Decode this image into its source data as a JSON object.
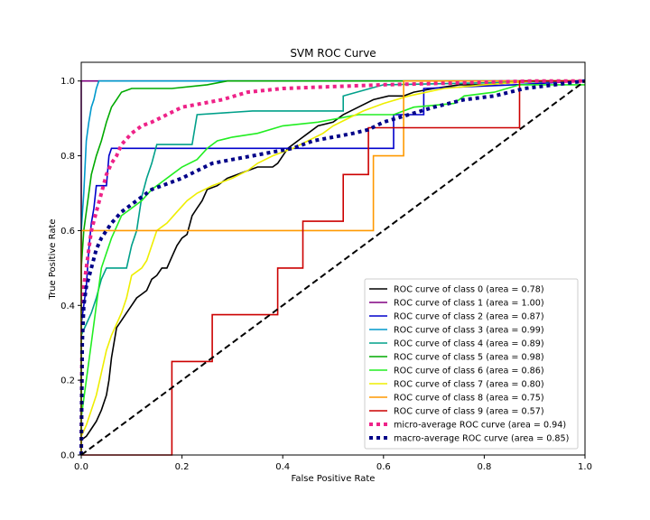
{
  "chart_data": {
    "type": "line",
    "title": "SVM ROC Curve",
    "xlabel": "False Positive Rate",
    "ylabel": "True Positive Rate",
    "xlim": [
      0,
      1
    ],
    "ylim": [
      0,
      1.05
    ],
    "xticks": [
      "0.0",
      "0.2",
      "0.4",
      "0.6",
      "0.8",
      "1.0"
    ],
    "yticks": [
      "0.0",
      "0.2",
      "0.4",
      "0.6",
      "0.8",
      "1.0"
    ],
    "grid": false,
    "legend_position": "lower-right",
    "series": [
      {
        "name": "ROC curve of class 0 (area = 0.78)",
        "color": "#000000",
        "style": "solid",
        "points": [
          [
            0,
            0
          ],
          [
            0,
            0.04
          ],
          [
            0.01,
            0.05
          ],
          [
            0.02,
            0.07
          ],
          [
            0.03,
            0.09
          ],
          [
            0.04,
            0.12
          ],
          [
            0.05,
            0.16
          ],
          [
            0.055,
            0.2
          ],
          [
            0.06,
            0.26
          ],
          [
            0.065,
            0.3
          ],
          [
            0.07,
            0.34
          ],
          [
            0.08,
            0.36
          ],
          [
            0.09,
            0.38
          ],
          [
            0.1,
            0.4
          ],
          [
            0.11,
            0.42
          ],
          [
            0.12,
            0.43
          ],
          [
            0.13,
            0.44
          ],
          [
            0.14,
            0.47
          ],
          [
            0.15,
            0.48
          ],
          [
            0.16,
            0.5
          ],
          [
            0.17,
            0.5
          ],
          [
            0.18,
            0.53
          ],
          [
            0.19,
            0.56
          ],
          [
            0.2,
            0.58
          ],
          [
            0.21,
            0.59
          ],
          [
            0.22,
            0.64
          ],
          [
            0.23,
            0.66
          ],
          [
            0.24,
            0.68
          ],
          [
            0.25,
            0.71
          ],
          [
            0.27,
            0.72
          ],
          [
            0.29,
            0.74
          ],
          [
            0.31,
            0.75
          ],
          [
            0.33,
            0.76
          ],
          [
            0.35,
            0.77
          ],
          [
            0.38,
            0.77
          ],
          [
            0.39,
            0.78
          ],
          [
            0.41,
            0.82
          ],
          [
            0.43,
            0.84
          ],
          [
            0.45,
            0.86
          ],
          [
            0.47,
            0.88
          ],
          [
            0.5,
            0.89
          ],
          [
            0.52,
            0.91
          ],
          [
            0.55,
            0.93
          ],
          [
            0.58,
            0.95
          ],
          [
            0.61,
            0.96
          ],
          [
            0.64,
            0.96
          ],
          [
            0.66,
            0.97
          ],
          [
            0.7,
            0.98
          ],
          [
            0.75,
            0.99
          ],
          [
            0.8,
            0.99
          ],
          [
            0.9,
            1.0
          ],
          [
            1.0,
            1.0
          ]
        ]
      },
      {
        "name": "ROC curve of class 1 (area = 1.00)",
        "color": "#800080",
        "style": "solid",
        "points": [
          [
            0,
            0
          ],
          [
            0,
            1.0
          ],
          [
            1.0,
            1.0
          ]
        ]
      },
      {
        "name": "ROC curve of class 2 (area = 0.87)",
        "color": "#0000cc",
        "style": "solid",
        "points": [
          [
            0,
            0
          ],
          [
            0,
            0.35
          ],
          [
            0.01,
            0.45
          ],
          [
            0.015,
            0.55
          ],
          [
            0.02,
            0.62
          ],
          [
            0.025,
            0.66
          ],
          [
            0.03,
            0.72
          ],
          [
            0.05,
            0.72
          ],
          [
            0.055,
            0.8
          ],
          [
            0.06,
            0.82
          ],
          [
            0.3,
            0.82
          ],
          [
            0.62,
            0.82
          ],
          [
            0.62,
            0.91
          ],
          [
            0.68,
            0.91
          ],
          [
            0.68,
            0.98
          ],
          [
            0.86,
            0.99
          ],
          [
            1.0,
            1.0
          ]
        ]
      },
      {
        "name": "ROC curve of class 3 (area = 0.99)",
        "color": "#0099cc",
        "style": "solid",
        "points": [
          [
            0,
            0
          ],
          [
            0,
            0.6
          ],
          [
            0.005,
            0.7
          ],
          [
            0.01,
            0.84
          ],
          [
            0.015,
            0.89
          ],
          [
            0.02,
            0.93
          ],
          [
            0.025,
            0.95
          ],
          [
            0.03,
            0.98
          ],
          [
            0.035,
            1.0
          ],
          [
            1.0,
            1.0
          ]
        ]
      },
      {
        "name": "ROC curve of class 4 (area = 0.89)",
        "color": "#00a08a",
        "style": "solid",
        "points": [
          [
            0,
            0
          ],
          [
            0,
            0.32
          ],
          [
            0.01,
            0.35
          ],
          [
            0.02,
            0.38
          ],
          [
            0.03,
            0.42
          ],
          [
            0.04,
            0.47
          ],
          [
            0.05,
            0.5
          ],
          [
            0.09,
            0.5
          ],
          [
            0.1,
            0.56
          ],
          [
            0.11,
            0.6
          ],
          [
            0.12,
            0.69
          ],
          [
            0.13,
            0.74
          ],
          [
            0.14,
            0.78
          ],
          [
            0.15,
            0.83
          ],
          [
            0.22,
            0.83
          ],
          [
            0.23,
            0.91
          ],
          [
            0.34,
            0.92
          ],
          [
            0.52,
            0.92
          ],
          [
            0.52,
            0.96
          ],
          [
            0.6,
            0.99
          ],
          [
            1.0,
            1.0
          ]
        ]
      },
      {
        "name": "ROC curve of class 5 (area = 0.98)",
        "color": "#00aa00",
        "style": "solid",
        "points": [
          [
            0,
            0
          ],
          [
            0,
            0.5
          ],
          [
            0.005,
            0.6
          ],
          [
            0.01,
            0.65
          ],
          [
            0.015,
            0.7
          ],
          [
            0.02,
            0.75
          ],
          [
            0.03,
            0.8
          ],
          [
            0.04,
            0.84
          ],
          [
            0.05,
            0.89
          ],
          [
            0.06,
            0.93
          ],
          [
            0.07,
            0.95
          ],
          [
            0.08,
            0.97
          ],
          [
            0.1,
            0.98
          ],
          [
            0.18,
            0.98
          ],
          [
            0.25,
            0.99
          ],
          [
            0.29,
            1.0
          ],
          [
            1.0,
            1.0
          ]
        ]
      },
      {
        "name": "ROC curve of class 6 (area = 0.86)",
        "color": "#22ee22",
        "style": "solid",
        "points": [
          [
            0,
            0
          ],
          [
            0,
            0.1
          ],
          [
            0.01,
            0.2
          ],
          [
            0.02,
            0.3
          ],
          [
            0.03,
            0.4
          ],
          [
            0.04,
            0.5
          ],
          [
            0.05,
            0.54
          ],
          [
            0.06,
            0.58
          ],
          [
            0.07,
            0.61
          ],
          [
            0.08,
            0.64
          ],
          [
            0.1,
            0.66
          ],
          [
            0.12,
            0.68
          ],
          [
            0.14,
            0.71
          ],
          [
            0.16,
            0.73
          ],
          [
            0.18,
            0.75
          ],
          [
            0.2,
            0.77
          ],
          [
            0.23,
            0.79
          ],
          [
            0.25,
            0.82
          ],
          [
            0.27,
            0.84
          ],
          [
            0.3,
            0.85
          ],
          [
            0.35,
            0.86
          ],
          [
            0.4,
            0.88
          ],
          [
            0.47,
            0.89
          ],
          [
            0.55,
            0.91
          ],
          [
            0.62,
            0.91
          ],
          [
            0.66,
            0.93
          ],
          [
            0.74,
            0.94
          ],
          [
            0.76,
            0.96
          ],
          [
            0.82,
            0.97
          ],
          [
            0.87,
            0.99
          ],
          [
            1.0,
            0.99
          ]
        ]
      },
      {
        "name": "ROC curve of class 7 (area = 0.80)",
        "color": "#eeee00",
        "style": "solid",
        "points": [
          [
            0,
            0
          ],
          [
            0,
            0.05
          ],
          [
            0.01,
            0.08
          ],
          [
            0.02,
            0.12
          ],
          [
            0.03,
            0.16
          ],
          [
            0.04,
            0.22
          ],
          [
            0.05,
            0.28
          ],
          [
            0.06,
            0.32
          ],
          [
            0.07,
            0.35
          ],
          [
            0.08,
            0.38
          ],
          [
            0.09,
            0.42
          ],
          [
            0.1,
            0.48
          ],
          [
            0.12,
            0.5
          ],
          [
            0.13,
            0.52
          ],
          [
            0.14,
            0.56
          ],
          [
            0.15,
            0.6
          ],
          [
            0.17,
            0.62
          ],
          [
            0.19,
            0.65
          ],
          [
            0.21,
            0.68
          ],
          [
            0.23,
            0.7
          ],
          [
            0.26,
            0.72
          ],
          [
            0.28,
            0.73
          ],
          [
            0.3,
            0.74
          ],
          [
            0.33,
            0.76
          ],
          [
            0.35,
            0.78
          ],
          [
            0.38,
            0.8
          ],
          [
            0.42,
            0.82
          ],
          [
            0.45,
            0.84
          ],
          [
            0.48,
            0.86
          ],
          [
            0.5,
            0.88
          ],
          [
            0.53,
            0.9
          ],
          [
            0.56,
            0.92
          ],
          [
            0.6,
            0.94
          ],
          [
            0.65,
            0.96
          ],
          [
            0.72,
            0.98
          ],
          [
            0.8,
            0.99
          ],
          [
            0.9,
            1.0
          ],
          [
            1.0,
            1.0
          ]
        ]
      },
      {
        "name": "ROC curve of class 8 (area = 0.75)",
        "color": "#ff9900",
        "style": "solid",
        "points": [
          [
            0,
            0
          ],
          [
            0,
            0.6
          ],
          [
            0.58,
            0.6
          ],
          [
            0.58,
            0.8
          ],
          [
            0.64,
            0.8
          ],
          [
            0.64,
            1.0
          ],
          [
            1.0,
            1.0
          ]
        ]
      },
      {
        "name": "ROC curve of class 9 (area = 0.57)",
        "color": "#cc0000",
        "style": "solid",
        "points": [
          [
            0,
            0
          ],
          [
            0.18,
            0
          ],
          [
            0.18,
            0.25
          ],
          [
            0.26,
            0.25
          ],
          [
            0.26,
            0.375
          ],
          [
            0.39,
            0.375
          ],
          [
            0.39,
            0.5
          ],
          [
            0.44,
            0.5
          ],
          [
            0.44,
            0.625
          ],
          [
            0.52,
            0.625
          ],
          [
            0.52,
            0.75
          ],
          [
            0.57,
            0.75
          ],
          [
            0.57,
            0.875
          ],
          [
            0.87,
            0.875
          ],
          [
            0.87,
            1.0
          ],
          [
            1.0,
            1.0
          ]
        ]
      },
      {
        "name": "micro-average ROC curve (area = 0.94)",
        "color": "#ee2288",
        "style": "dotted",
        "points": [
          [
            0,
            0
          ],
          [
            0.002,
            0.35
          ],
          [
            0.005,
            0.45
          ],
          [
            0.01,
            0.5
          ],
          [
            0.015,
            0.55
          ],
          [
            0.02,
            0.6
          ],
          [
            0.03,
            0.65
          ],
          [
            0.04,
            0.7
          ],
          [
            0.05,
            0.75
          ],
          [
            0.06,
            0.78
          ],
          [
            0.07,
            0.8
          ],
          [
            0.08,
            0.83
          ],
          [
            0.1,
            0.86
          ],
          [
            0.12,
            0.88
          ],
          [
            0.14,
            0.89
          ],
          [
            0.17,
            0.91
          ],
          [
            0.2,
            0.93
          ],
          [
            0.24,
            0.94
          ],
          [
            0.28,
            0.95
          ],
          [
            0.33,
            0.97
          ],
          [
            0.4,
            0.98
          ],
          [
            0.5,
            0.985
          ],
          [
            0.6,
            0.99
          ],
          [
            0.75,
            0.995
          ],
          [
            0.9,
            1.0
          ],
          [
            1.0,
            1.0
          ]
        ]
      },
      {
        "name": "macro-average ROC curve (area = 0.85)",
        "color": "#000088",
        "style": "dotted",
        "points": [
          [
            0,
            0
          ],
          [
            0.002,
            0.3
          ],
          [
            0.005,
            0.4
          ],
          [
            0.01,
            0.45
          ],
          [
            0.02,
            0.5
          ],
          [
            0.03,
            0.55
          ],
          [
            0.04,
            0.58
          ],
          [
            0.05,
            0.6
          ],
          [
            0.06,
            0.62
          ],
          [
            0.08,
            0.65
          ],
          [
            0.1,
            0.67
          ],
          [
            0.12,
            0.69
          ],
          [
            0.14,
            0.71
          ],
          [
            0.16,
            0.72
          ],
          [
            0.18,
            0.73
          ],
          [
            0.2,
            0.74
          ],
          [
            0.23,
            0.76
          ],
          [
            0.26,
            0.78
          ],
          [
            0.3,
            0.79
          ],
          [
            0.34,
            0.8
          ],
          [
            0.38,
            0.81
          ],
          [
            0.42,
            0.82
          ],
          [
            0.46,
            0.84
          ],
          [
            0.5,
            0.85
          ],
          [
            0.54,
            0.86
          ],
          [
            0.57,
            0.87
          ],
          [
            0.6,
            0.89
          ],
          [
            0.65,
            0.91
          ],
          [
            0.7,
            0.93
          ],
          [
            0.76,
            0.95
          ],
          [
            0.82,
            0.96
          ],
          [
            0.88,
            0.98
          ],
          [
            0.94,
            0.99
          ],
          [
            1.0,
            1.0
          ]
        ]
      },
      {
        "name": "",
        "color": "#000000",
        "style": "dashed",
        "points": [
          [
            0,
            0
          ],
          [
            1,
            1
          ]
        ]
      }
    ]
  }
}
